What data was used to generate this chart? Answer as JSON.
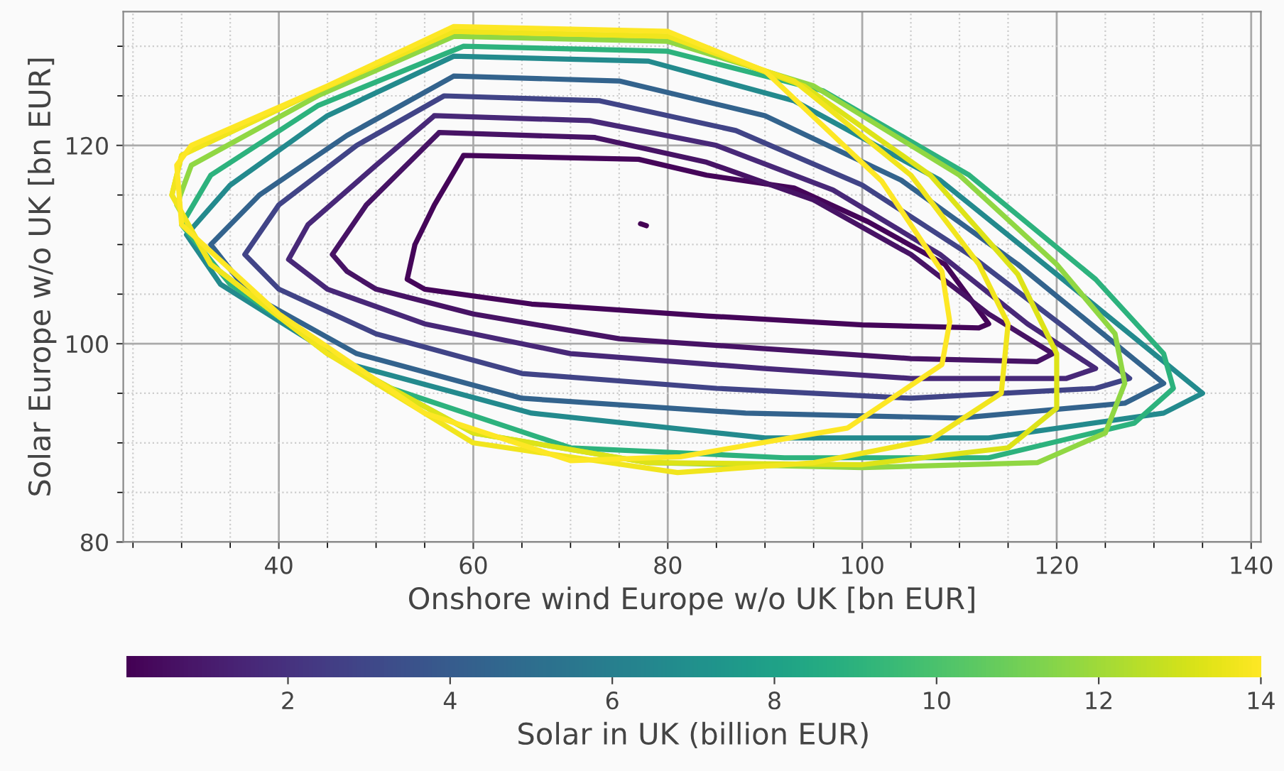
{
  "chart_data": {
    "type": "line",
    "xlabel": "Onshore wind Europe w/o UK [bn EUR]",
    "ylabel": "Solar Europe w/o UK [bn EUR]",
    "clabel": "Solar in UK (billion EUR)",
    "xlim": [
      24,
      141
    ],
    "ylim": [
      80,
      133.5
    ],
    "xticks": [
      40,
      60,
      80,
      100,
      120,
      140
    ],
    "yticks": [
      80,
      100,
      120
    ],
    "clim": [
      0,
      14
    ],
    "cticks": [
      2,
      4,
      6,
      8,
      10,
      12,
      14
    ],
    "grid": true,
    "series": [
      {
        "color": "#440154",
        "x": [
          77.2,
          77.8
        ],
        "values": [
          112.1,
          111.9
        ]
      },
      {
        "color": "#450559",
        "x": [
          59,
          77,
          84,
          93,
          100.6,
          108.5,
          113,
          112,
          100,
          84,
          66,
          55,
          53.2,
          54,
          56,
          59
        ],
        "values": [
          119,
          118.6,
          117,
          115.7,
          112.3,
          108,
          102,
          101.6,
          101.9,
          102.8,
          104,
          105.5,
          106.5,
          110,
          114,
          119
        ]
      },
      {
        "color": "#471365",
        "x": [
          56.5,
          72.5,
          84,
          95,
          105,
          113,
          119.6,
          118,
          105,
          90,
          75,
          60,
          50,
          47,
          45.5,
          49,
          56.5
        ],
        "values": [
          121.3,
          120.8,
          118.3,
          114.5,
          109,
          103,
          99,
          98.2,
          98.5,
          99.5,
          100.5,
          103,
          105.5,
          107.3,
          109,
          114,
          121.3
        ]
      },
      {
        "color": "#482878",
        "x": [
          56,
          72,
          85,
          97,
          108,
          117,
          124,
          121,
          105,
          90,
          70,
          55,
          45,
          41,
          43,
          50,
          56
        ],
        "values": [
          123,
          122.5,
          120,
          115.5,
          109,
          102,
          97.5,
          96.5,
          96.5,
          97.5,
          99,
          102,
          105.5,
          108.5,
          112,
          118,
          123
        ]
      },
      {
        "color": "#414487",
        "x": [
          57,
          73,
          87,
          100,
          111,
          121,
          127.5,
          124,
          105,
          85,
          65,
          50,
          40,
          36.5,
          40,
          48,
          57
        ],
        "values": [
          125,
          124.5,
          121.5,
          116,
          109,
          101.5,
          96.5,
          95.5,
          94.5,
          95.5,
          97,
          101,
          105.5,
          109,
          114,
          120,
          125
        ]
      },
      {
        "color": "#33638d",
        "x": [
          58,
          75,
          90,
          104,
          116,
          126,
          131,
          127,
          110,
          88,
          65,
          48,
          37,
          33,
          38,
          47,
          58
        ],
        "values": [
          127,
          126.5,
          123,
          116.5,
          108,
          100,
          96,
          94,
          92.5,
          93,
          94.5,
          99,
          105,
          110,
          115,
          121,
          127
        ]
      },
      {
        "color": "#238a8d",
        "x": [
          58,
          78,
          93,
          108,
          120,
          130,
          135,
          131,
          113,
          90,
          66,
          47,
          34,
          30.5,
          35,
          45,
          58
        ],
        "values": [
          129,
          128.5,
          124.5,
          116.5,
          107,
          99,
          95,
          93,
          90.5,
          90.5,
          93,
          98,
          106,
          111,
          116,
          123,
          129
        ]
      },
      {
        "color": "#2db27d",
        "x": [
          59,
          80,
          96,
          111,
          124,
          131,
          132,
          128,
          113,
          92,
          70,
          50,
          35,
          30,
          33,
          44,
          59
        ],
        "values": [
          130,
          129.5,
          125.5,
          117,
          106.5,
          99,
          95.5,
          92,
          88.5,
          88.5,
          89.5,
          96,
          106,
          112,
          117,
          124,
          130
        ]
      },
      {
        "color": "#90d743",
        "x": [
          58,
          80,
          95,
          110,
          120,
          126,
          127,
          125,
          118,
          100,
          78,
          60,
          45,
          33,
          29.5,
          31,
          44,
          58
        ],
        "values": [
          131,
          130.5,
          126,
          117,
          108,
          101,
          96,
          91,
          88,
          87.5,
          88,
          91,
          99,
          108,
          114,
          118,
          125,
          131
        ]
      },
      {
        "color": "#dde318",
        "x": [
          58,
          80,
          94,
          107,
          116,
          120,
          120,
          115,
          100,
          78,
          60,
          45,
          33,
          29,
          30,
          44,
          58
        ],
        "values": [
          131.5,
          131,
          126,
          117,
          107,
          99,
          93.5,
          89.5,
          87.8,
          88,
          91,
          99,
          108,
          115,
          119,
          125.5,
          131.5
        ]
      },
      {
        "color": "#f1e51d",
        "x": [
          58,
          80,
          93,
          105,
          112,
          115,
          114.3,
          107,
          95,
          81,
          60,
          45,
          33,
          29,
          30,
          44,
          58
        ],
        "values": [
          131.5,
          131,
          126.5,
          117,
          108,
          102,
          95,
          90.3,
          88,
          87,
          90,
          99,
          108,
          115,
          119,
          125.5,
          131.5
        ]
      },
      {
        "color": "#fde725",
        "x": [
          58,
          80,
          90,
          102,
          108.2,
          109,
          108.2,
          98.5,
          81.3,
          70,
          55,
          40,
          30,
          29.5,
          31,
          45,
          58
        ],
        "values": [
          132,
          131.5,
          127.5,
          116.4,
          107.3,
          102.2,
          97.9,
          91.5,
          88.6,
          88.2,
          93,
          103,
          112,
          118,
          120,
          126,
          132
        ]
      }
    ]
  }
}
